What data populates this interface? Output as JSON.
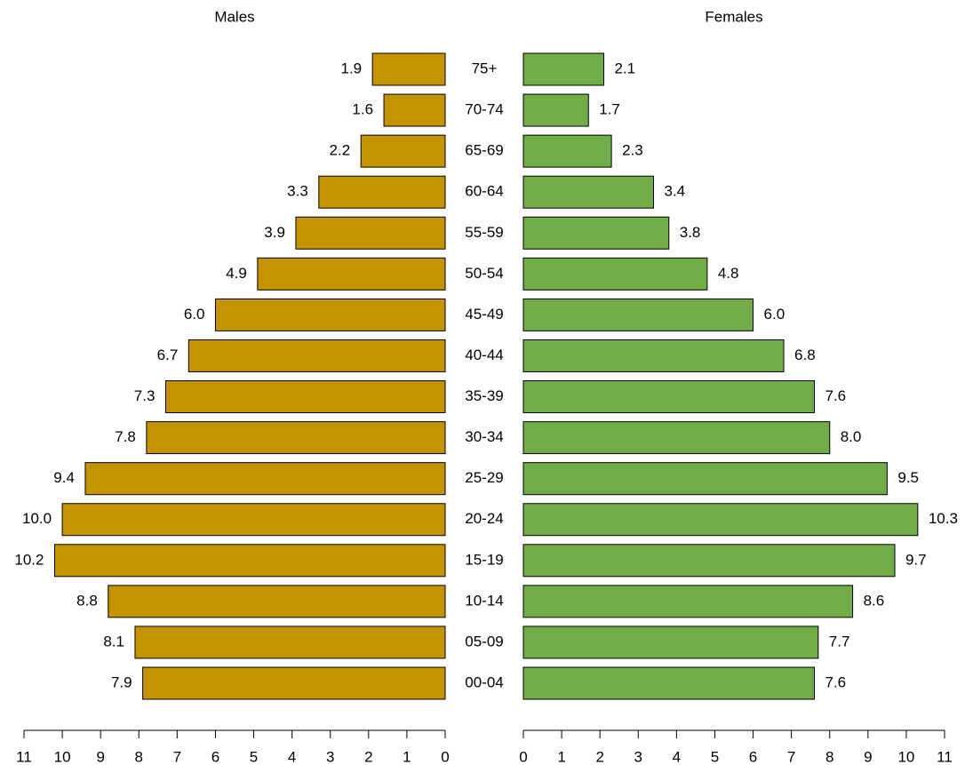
{
  "chart_data": {
    "type": "population_pyramid",
    "categories": [
      "00-04",
      "05-09",
      "10-14",
      "15-19",
      "20-24",
      "25-29",
      "30-34",
      "35-39",
      "40-44",
      "45-49",
      "50-54",
      "55-59",
      "60-64",
      "65-69",
      "70-74",
      "75+"
    ],
    "series": [
      {
        "name": "Males",
        "color": "#c49300",
        "values": [
          7.9,
          8.1,
          8.8,
          10.2,
          10.0,
          9.4,
          7.8,
          7.3,
          6.7,
          6.0,
          4.9,
          3.9,
          3.3,
          2.2,
          1.6,
          1.9
        ],
        "value_labels": [
          "7.9",
          "8.1",
          "8.8",
          "10.2",
          "10.0",
          "9.4",
          "7.8",
          "7.3",
          "6.7",
          "6.0",
          "4.9",
          "3.9",
          "3.3",
          "2.2",
          "1.6",
          "1.9"
        ]
      },
      {
        "name": "Females",
        "color": "#70ad47",
        "values": [
          7.6,
          7.7,
          8.6,
          9.7,
          10.3,
          9.5,
          8.0,
          7.6,
          6.8,
          6.0,
          4.8,
          3.8,
          3.4,
          2.3,
          1.7,
          2.1
        ],
        "value_labels": [
          "7.6",
          "7.7",
          "8.6",
          "9.7",
          "10.3",
          "9.5",
          "8.0",
          "7.6",
          "6.8",
          "6.0",
          "4.8",
          "3.8",
          "3.4",
          "2.3",
          "1.7",
          "2.1"
        ]
      }
    ],
    "xlim": [
      0,
      11
    ],
    "xticks": [
      0,
      1,
      2,
      3,
      4,
      5,
      6,
      7,
      8,
      9,
      10,
      11
    ]
  }
}
